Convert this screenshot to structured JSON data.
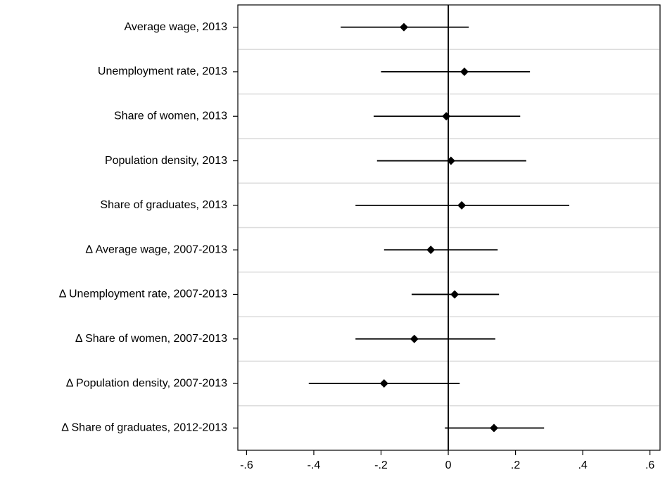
{
  "chart_data": {
    "type": "coefplot",
    "categories": [
      "Average wage, 2013",
      "Unemployment rate, 2013",
      "Share of women, 2013",
      "Population density, 2013",
      "Share of graduates, 2013",
      "Δ Average wage, 2007-2013",
      "Δ Unemployment rate, 2007-2013",
      "Δ Share of women, 2007-2013",
      "Δ Population density, 2007-2013",
      "Δ Share of graduates, 2012-2013"
    ],
    "values": [
      -0.132,
      0.048,
      -0.006,
      0.008,
      0.04,
      -0.052,
      0.019,
      -0.101,
      -0.191,
      0.136
    ],
    "lower": [
      -0.32,
      -0.2,
      -0.222,
      -0.212,
      -0.276,
      -0.191,
      -0.109,
      -0.276,
      -0.415,
      -0.01
    ],
    "upper": [
      0.061,
      0.243,
      0.214,
      0.232,
      0.36,
      0.147,
      0.151,
      0.14,
      0.034,
      0.285
    ],
    "color": "#000000",
    "xlim": [
      -0.626,
      0.63
    ],
    "xticks": [
      {
        "value": -0.6,
        "label": "-.6"
      },
      {
        "value": -0.4,
        "label": "-.4"
      },
      {
        "value": -0.2,
        "label": "-.2"
      },
      0,
      {
        "value": 0.2,
        "label": ".2"
      },
      {
        "value": 0.4,
        "label": ".4"
      },
      {
        "value": 0.6,
        "label": ".6"
      }
    ],
    "xline": 0,
    "grid": true
  }
}
